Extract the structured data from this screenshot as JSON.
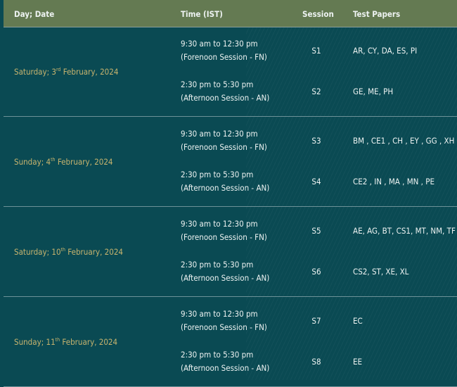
{
  "header": {
    "day_date": "Day; Date",
    "time": "Time (IST)",
    "session": "Session",
    "papers": "Test Papers"
  },
  "groups": [
    {
      "day": "Saturday; 3",
      "suffix": "rd",
      "rest": " February, 2024",
      "sessions": [
        {
          "time": "9:30 am to 12:30 pm",
          "label": "(Forenoon Session - FN)",
          "session": "S1",
          "papers": "AR, CY, DA, ES, PI"
        },
        {
          "time": "2:30 pm to 5:30 pm",
          "label": "(Afternoon Session - AN)",
          "session": "S2",
          "papers": "GE, ME, PH"
        }
      ]
    },
    {
      "day": "Sunday; 4",
      "suffix": "th",
      "rest": " February, 2024",
      "sessions": [
        {
          "time": "9:30 am to 12:30 pm",
          "label": "(Forenoon Session - FN)",
          "session": "S3",
          "papers": "BM , CE1 , CH , EY , GG , XH"
        },
        {
          "time": "2:30 pm to 5:30 pm",
          "label": "(Afternoon Session - AN)",
          "session": "S4",
          "papers": "CE2 , IN , MA , MN , PE"
        }
      ]
    },
    {
      "day": "Saturday; 10",
      "suffix": "th",
      "rest": " February, 2024",
      "sessions": [
        {
          "time": "9:30 am to 12:30 pm",
          "label": "(Forenoon Session - FN)",
          "session": "S5",
          "papers": "AE, AG, BT, CS1, MT, NM, TF"
        },
        {
          "time": "2:30 pm to 5:30 pm",
          "label": "(Afternoon Session - AN)",
          "session": "S6",
          "papers": "CS2, ST, XE, XL"
        }
      ]
    },
    {
      "day": "Sunday; 11",
      "suffix": "th",
      "rest": " February, 2024",
      "sessions": [
        {
          "time": "9:30 am to 12:30 pm",
          "label": "(Forenoon Session - FN)",
          "session": "S7",
          "papers": "EC"
        },
        {
          "time": "2:30 pm to 5:30 pm",
          "label": "(Afternoon Session - AN)",
          "session": "S8",
          "papers": "EE"
        }
      ]
    }
  ],
  "colors": {
    "header_bg": "#647a52",
    "body_bg": "#0a4a53",
    "date_text": "#c8b46e"
  }
}
